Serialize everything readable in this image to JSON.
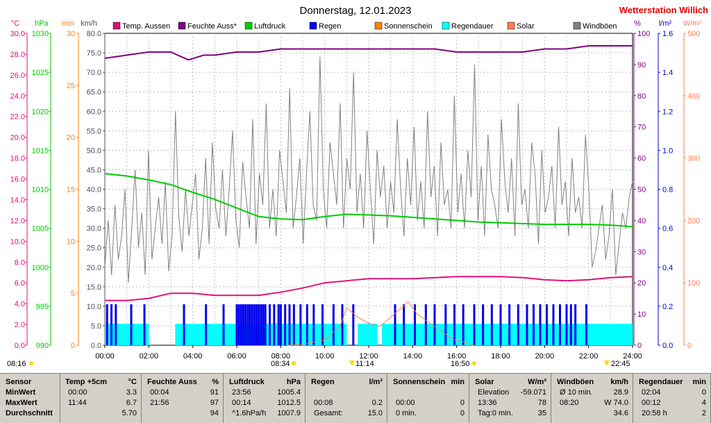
{
  "header": {
    "date_title": "Donnerstag, 12.01.2023",
    "station": "Wetterstation Willich"
  },
  "units_left": [
    "°C",
    "hPa",
    "min",
    "km/h"
  ],
  "units_right": [
    "%",
    "l/m²",
    "W/m²"
  ],
  "legend": [
    {
      "label": "Temp. Aussen",
      "color": "#e0107a"
    },
    {
      "label": "Feuchte Auss*",
      "color": "#800080"
    },
    {
      "label": "Luftdruck",
      "color": "#00cc00"
    },
    {
      "label": "Regen",
      "color": "#0000ee"
    },
    {
      "label": "Sonnenschein",
      "color": "#ff8000"
    },
    {
      "label": "Regendauer",
      "color": "#00ffff"
    },
    {
      "label": "Solar",
      "color": "#ff7f50"
    },
    {
      "label": "Windböen",
      "color": "#808080"
    }
  ],
  "markers": {
    "sunrise_label": "08:16",
    "sunrise_time": "08:34",
    "noon_label": "11:14",
    "sunset_label": "16:50",
    "moon_label": "22:45"
  },
  "chart_data": {
    "type": "line",
    "x": {
      "label": "",
      "range": [
        0,
        24
      ],
      "ticks": [
        "00:00",
        "02:00",
        "04:00",
        "06:00",
        "08:00",
        "10:00",
        "12:00",
        "14:00",
        "16:00",
        "18:00",
        "20:00",
        "22:00",
        "24:00"
      ]
    },
    "axes": {
      "temp_c": {
        "range": [
          0,
          30
        ],
        "ticks": [
          "0.0",
          "2.0",
          "4.0",
          "6.0",
          "8.0",
          "10.0",
          "12.0",
          "14.0",
          "16.0",
          "18.0",
          "20.0",
          "22.0",
          "24.0",
          "26.0",
          "28.0",
          "30.0"
        ]
      },
      "pressure_hpa": {
        "range": [
          990,
          1030
        ],
        "ticks": [
          "990",
          "995",
          "1000",
          "1005",
          "1010",
          "1015",
          "1020",
          "1025",
          "1030"
        ]
      },
      "minutes": {
        "range": [
          0,
          30
        ],
        "ticks": [
          "0",
          "5",
          "10",
          "15",
          "20",
          "25",
          "30"
        ]
      },
      "wind_kmh": {
        "range": [
          0,
          80
        ],
        "ticks": [
          "0.0",
          "5.0",
          "10.0",
          "15.0",
          "20.0",
          "25.0",
          "30.0",
          "35.0",
          "40.0",
          "45.0",
          "50.0",
          "55.0",
          "60.0",
          "65.0",
          "70.0",
          "75.0",
          "80.0"
        ]
      },
      "humidity_pct": {
        "range": [
          0,
          100
        ],
        "ticks": [
          "0",
          "10",
          "20",
          "30",
          "40",
          "50",
          "60",
          "70",
          "80",
          "90",
          "100"
        ]
      },
      "rain_lm2": {
        "range": [
          0,
          1.6
        ],
        "ticks": [
          "0.0",
          "0.2",
          "0.4",
          "0.6",
          "0.8",
          "1.0",
          "1.2",
          "1.4",
          "1.6"
        ]
      },
      "solar_wm2": {
        "range": [
          0,
          500
        ],
        "ticks": [
          "0",
          "100",
          "200",
          "300",
          "400",
          "500"
        ]
      }
    },
    "series": [
      {
        "name": "Temp. Aussen",
        "axis": "temp_c",
        "color": "#e0107a",
        "points": [
          [
            0,
            4.3
          ],
          [
            1,
            4.3
          ],
          [
            2,
            4.5
          ],
          [
            3,
            5.0
          ],
          [
            4,
            5.0
          ],
          [
            5,
            4.8
          ],
          [
            6,
            4.8
          ],
          [
            7,
            4.8
          ],
          [
            8,
            5.1
          ],
          [
            9,
            5.5
          ],
          [
            10,
            6.0
          ],
          [
            11,
            6.2
          ],
          [
            12,
            6.4
          ],
          [
            13,
            6.4
          ],
          [
            14,
            6.4
          ],
          [
            15,
            6.5
          ],
          [
            16,
            6.6
          ],
          [
            17,
            6.6
          ],
          [
            18,
            6.6
          ],
          [
            19,
            6.5
          ],
          [
            20,
            6.3
          ],
          [
            21,
            6.2
          ],
          [
            22,
            6.3
          ],
          [
            23,
            6.5
          ],
          [
            24,
            6.6
          ]
        ]
      },
      {
        "name": "Feuchte Auss*",
        "axis": "humidity_pct",
        "color": "#800080",
        "points": [
          [
            0,
            92
          ],
          [
            1,
            93
          ],
          [
            2,
            94
          ],
          [
            3,
            94
          ],
          [
            3.8,
            91.5
          ],
          [
            4.5,
            93
          ],
          [
            5,
            93
          ],
          [
            6,
            94
          ],
          [
            7,
            94
          ],
          [
            8,
            95
          ],
          [
            9,
            95
          ],
          [
            10,
            95
          ],
          [
            11,
            95
          ],
          [
            12,
            95
          ],
          [
            13,
            95
          ],
          [
            14,
            95
          ],
          [
            15,
            95
          ],
          [
            16,
            94
          ],
          [
            17,
            94
          ],
          [
            18,
            94
          ],
          [
            19,
            94
          ],
          [
            20,
            95
          ],
          [
            21,
            95
          ],
          [
            22,
            96
          ],
          [
            23,
            96
          ],
          [
            24,
            96
          ]
        ]
      },
      {
        "name": "Luftdruck",
        "axis": "pressure_hpa",
        "color": "#00cc00",
        "points": [
          [
            0,
            1012.0
          ],
          [
            1,
            1011.7
          ],
          [
            2,
            1011.2
          ],
          [
            3,
            1010.6
          ],
          [
            4,
            1009.6
          ],
          [
            5,
            1008.7
          ],
          [
            6,
            1007.6
          ],
          [
            7,
            1006.5
          ],
          [
            8,
            1006.2
          ],
          [
            9,
            1006.1
          ],
          [
            10,
            1006.5
          ],
          [
            11,
            1006.8
          ],
          [
            12,
            1006.7
          ],
          [
            13,
            1006.6
          ],
          [
            14,
            1006.4
          ],
          [
            15,
            1006.2
          ],
          [
            16,
            1006.0
          ],
          [
            17,
            1005.8
          ],
          [
            18,
            1005.7
          ],
          [
            19,
            1005.6
          ],
          [
            20,
            1005.5
          ],
          [
            21,
            1005.5
          ],
          [
            22,
            1005.5
          ],
          [
            23,
            1005.4
          ],
          [
            24,
            1005.2
          ]
        ]
      },
      {
        "name": "Solar",
        "axis": "solar_wm2",
        "color": "#ff7f50",
        "points": [
          [
            8.3,
            0
          ],
          [
            9,
            2
          ],
          [
            10,
            8
          ],
          [
            10.7,
            30
          ],
          [
            11,
            60
          ],
          [
            11.5,
            45
          ],
          [
            12,
            35
          ],
          [
            12.5,
            30
          ],
          [
            13,
            45
          ],
          [
            13.5,
            60
          ],
          [
            13.8,
            70
          ],
          [
            14.2,
            50
          ],
          [
            15,
            30
          ],
          [
            15.8,
            10
          ],
          [
            16.5,
            3
          ],
          [
            16.8,
            0
          ]
        ]
      }
    ],
    "windboeen_kmh": [
      20,
      32,
      18,
      36,
      22,
      28,
      40,
      16,
      30,
      45,
      25,
      34,
      18,
      50,
      22,
      30,
      38,
      26,
      42,
      19,
      28,
      60,
      33,
      24,
      40,
      28,
      36,
      44,
      22,
      30,
      48,
      26,
      52,
      35,
      30,
      45,
      28,
      40,
      55,
      32,
      25,
      47,
      38,
      30,
      58,
      26,
      44,
      36,
      62,
      30,
      40,
      28,
      50,
      42,
      34,
      66,
      30,
      38,
      48,
      26,
      44,
      60,
      36,
      32,
      74,
      40,
      30,
      52,
      44,
      36,
      62,
      30,
      48,
      40,
      70,
      34,
      44,
      30,
      55,
      40,
      26,
      50,
      38,
      46,
      30,
      42,
      34,
      58,
      40,
      28,
      48,
      36,
      56,
      32,
      42,
      30,
      60,
      38,
      46,
      28,
      52,
      36,
      40,
      30,
      64,
      34,
      44,
      30,
      50,
      38,
      72,
      32,
      46,
      28,
      54,
      40,
      36,
      30,
      58,
      42,
      34,
      48,
      28,
      62,
      36,
      40,
      30,
      52,
      44,
      26,
      50,
      34,
      38,
      46,
      30,
      56,
      36,
      42,
      28,
      48,
      34,
      38,
      30,
      54,
      40,
      20,
      24,
      30,
      36,
      22,
      28,
      40,
      18,
      26,
      34,
      30,
      38,
      42
    ],
    "regen_hours": [
      0.1,
      0.3,
      0.5,
      1.2,
      1.8,
      3.6,
      4.6,
      5.4,
      6.0,
      6.1,
      6.2,
      6.3,
      6.4,
      6.5,
      6.6,
      6.7,
      6.8,
      6.9,
      7.0,
      7.1,
      7.2,
      7.3,
      7.5,
      7.7,
      7.9,
      8.0,
      8.2,
      8.4,
      8.6,
      8.9,
      9.2,
      9.5,
      9.9,
      10.4,
      10.8,
      11.3,
      13.2,
      13.6,
      14.1,
      14.6,
      15.0,
      15.5,
      15.9,
      16.3,
      16.8,
      17.2,
      17.6,
      18.0,
      18.4,
      18.8,
      19.2,
      19.5,
      19.8,
      20.1,
      20.4,
      20.7,
      21.0,
      21.2,
      21.4,
      21.9
    ],
    "regendauer_hours": [
      [
        0,
        2
      ],
      [
        3.2,
        11.0
      ],
      [
        11.5,
        12.4
      ],
      [
        12.6,
        24.0
      ]
    ]
  },
  "stats": {
    "sensor": {
      "title": "Sensor",
      "rows": [
        "MinWert",
        "MaxWert",
        "Durchschnitt"
      ]
    },
    "temp": {
      "title": "Temp +5cm",
      "unit": "°C",
      "rows": [
        [
          "00:00",
          "3.3"
        ],
        [
          "11:44",
          "6.7"
        ],
        [
          "",
          "5.70"
        ]
      ]
    },
    "feuchte": {
      "title": "Feuchte Auss",
      "unit": "%",
      "rows": [
        [
          "00:04",
          "91"
        ],
        [
          "21:56",
          "97"
        ],
        [
          "",
          "94"
        ]
      ]
    },
    "luftdruck": {
      "title": "Luftdruck",
      "unit": "hPa",
      "rows": [
        [
          "23:56",
          "1005.4"
        ],
        [
          "00:14",
          "1012.5"
        ],
        [
          "^1.6hPa/h",
          "1007.9"
        ]
      ]
    },
    "regen": {
      "title": "Regen",
      "unit": "l/m²",
      "rows": [
        [
          "",
          ""
        ],
        [
          "00:08",
          "0.2"
        ],
        [
          "Gesamt:",
          "15.0"
        ]
      ]
    },
    "sonne": {
      "title": "Sonnenschein",
      "unit": "min",
      "rows": [
        [
          "",
          ""
        ],
        [
          "00:00",
          "0"
        ],
        [
          "0 min.",
          "0"
        ]
      ]
    },
    "solar": {
      "title": "Solar",
      "unit": "W/m²",
      "rows": [
        [
          "Elevation",
          "-59.071"
        ],
        [
          "13:36",
          "78"
        ],
        [
          "Tag:0 min.",
          "35"
        ]
      ]
    },
    "wind": {
      "title": "Windböen",
      "unit": "km/h",
      "rows": [
        [
          "Ø 10 min.",
          "28.9"
        ],
        [
          "08:20",
          "W 74.0"
        ],
        [
          "",
          "34.6"
        ]
      ]
    },
    "regendauer": {
      "title": "Regendauer",
      "unit": "min",
      "rows": [
        [
          "02:04",
          "0"
        ],
        [
          "00:12",
          "4"
        ],
        [
          "20:58 h",
          "2"
        ]
      ]
    }
  }
}
